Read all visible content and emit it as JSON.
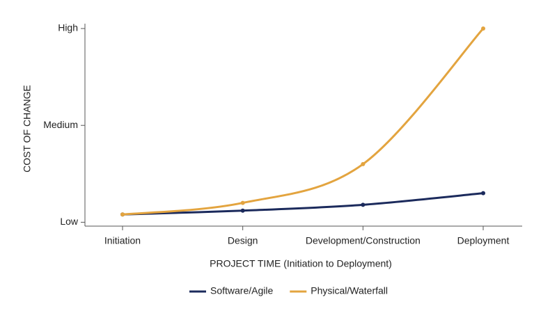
{
  "chart_data": {
    "type": "line",
    "x_label": "PROJECT TIME (Initiation to Deployment)",
    "y_label": "COST OF CHANGE",
    "categories": [
      "Initiation",
      "Design",
      "Development/Construction",
      "Deployment"
    ],
    "series": [
      {
        "name": "Software/Agile",
        "color": "#1b2a5c",
        "values": [
          4,
          6,
          9,
          15
        ]
      },
      {
        "name": "Physical/Waterfall",
        "color": "#e3a43f",
        "values": [
          4,
          10,
          30,
          100
        ]
      }
    ],
    "ylim": [
      -2,
      100
    ],
    "yticks": [
      {
        "value": 0,
        "label": "Low"
      },
      {
        "value": 50,
        "label": "Medium"
      },
      {
        "value": 100,
        "label": "High"
      }
    ],
    "grid": false
  }
}
